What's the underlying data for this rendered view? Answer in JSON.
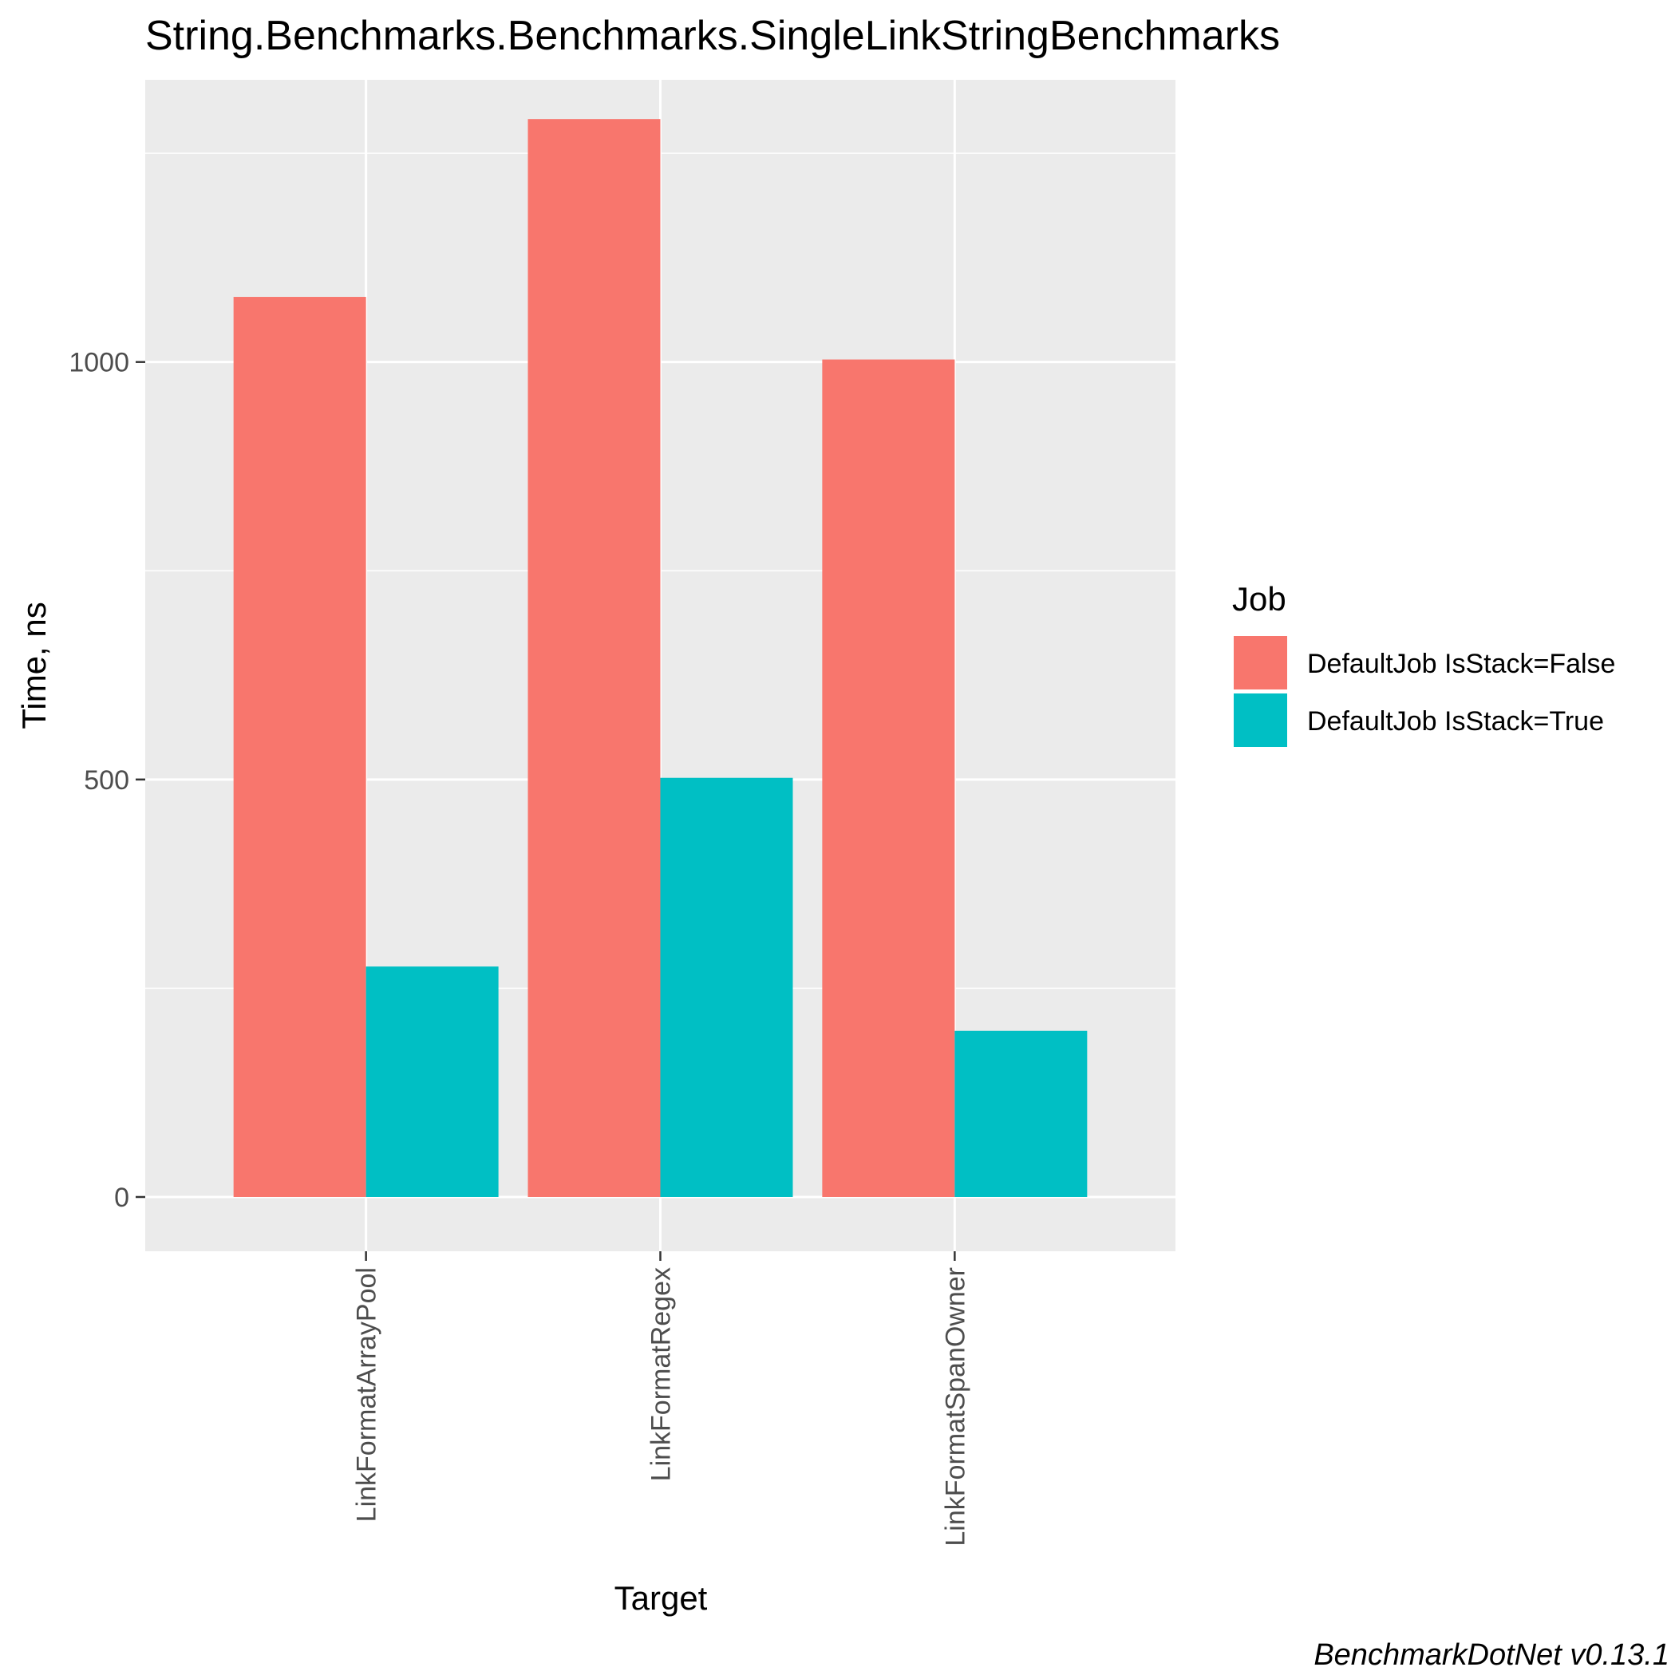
{
  "chart_data": {
    "type": "bar",
    "title": "String.Benchmarks.Benchmarks.SingleLinkStringBenchmarks",
    "xlabel": "Target",
    "ylabel": "Time, ns",
    "categories": [
      "LinkFormatArrayPool",
      "LinkFormatRegex",
      "LinkFormatSpanOwner"
    ],
    "series": [
      {
        "name": "DefaultJob IsStack=False",
        "color": "#F8766D",
        "values": [
          1078,
          1291,
          1003
        ]
      },
      {
        "name": "DefaultJob IsStack=True",
        "color": "#00BFC4",
        "values": [
          276,
          502,
          199
        ]
      }
    ],
    "ylim": [
      -65,
      1338
    ],
    "y_ticks": [
      0,
      500,
      1000
    ],
    "y_tick_labels": [
      "0",
      "500",
      "1000"
    ],
    "legend": {
      "title": "Job",
      "position": "right"
    },
    "grid": true,
    "caption": "BenchmarkDotNet v0.13.1"
  }
}
